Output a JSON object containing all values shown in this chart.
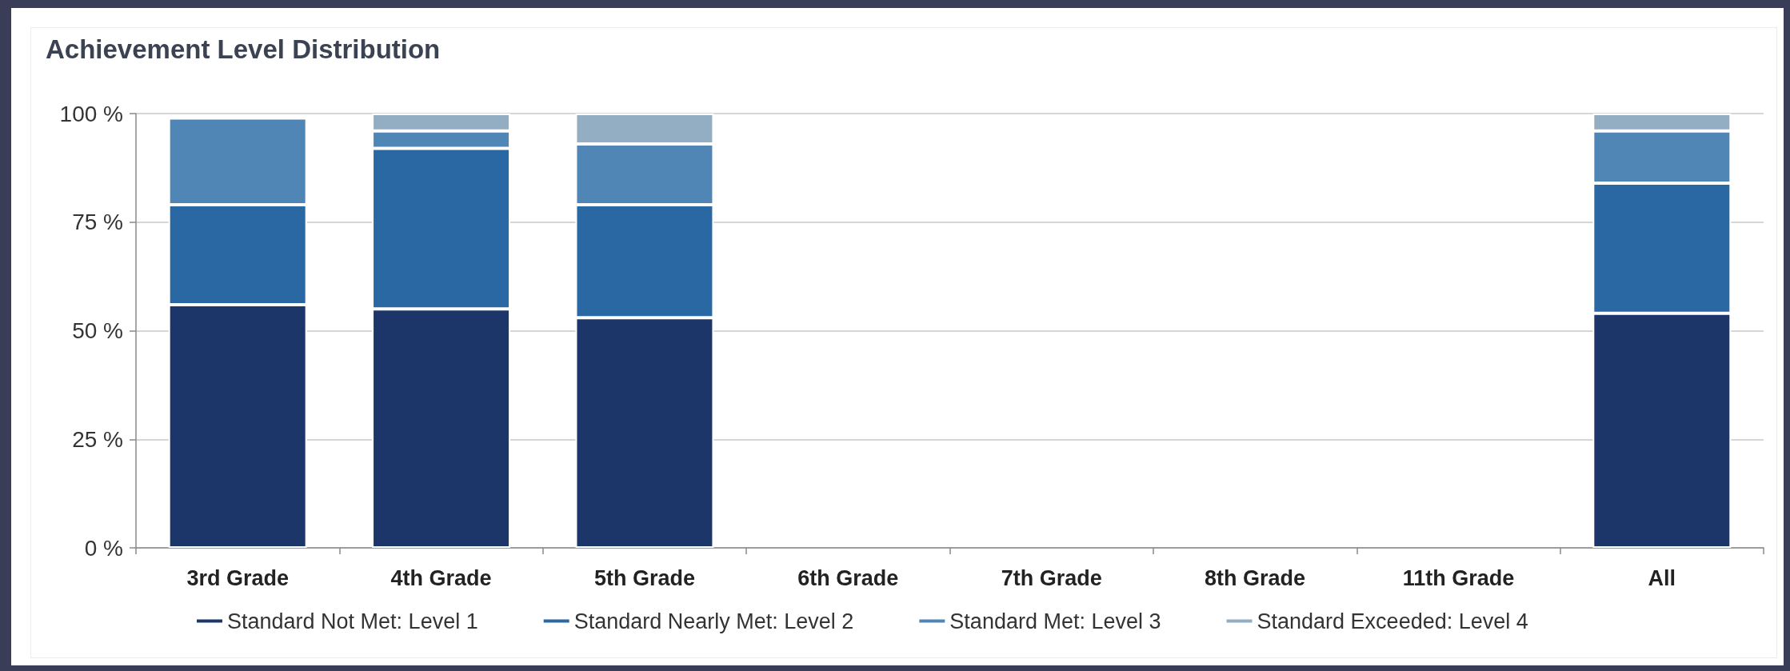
{
  "chart_data": {
    "type": "bar",
    "title": "Achievement Level Distribution",
    "categories": [
      "3rd Grade",
      "4th Grade",
      "5th Grade",
      "6th Grade",
      "7th Grade",
      "8th Grade",
      "11th Grade",
      "All"
    ],
    "stacked": true,
    "series": [
      {
        "name": "Standard Not Met: Level 1",
        "color": "#1c3669",
        "values": [
          56,
          55,
          53,
          null,
          null,
          null,
          null,
          54
        ]
      },
      {
        "name": "Standard Nearly Met: Level 2",
        "color": "#2a68a4",
        "values": [
          23,
          37,
          26,
          null,
          null,
          null,
          null,
          30
        ]
      },
      {
        "name": "Standard Met: Level 3",
        "color": "#4f86b6",
        "values": [
          20,
          4,
          14,
          null,
          null,
          null,
          null,
          12
        ]
      },
      {
        "name": "Standard Exceeded: Level 4",
        "color": "#93adc2",
        "values": [
          null,
          4,
          7,
          null,
          null,
          null,
          null,
          4
        ]
      }
    ],
    "ylim": [
      0,
      100
    ],
    "yticks": [
      {
        "value": 0,
        "label": "0 %"
      },
      {
        "value": 25,
        "label": "25 %"
      },
      {
        "value": 50,
        "label": "50 %"
      },
      {
        "value": 75,
        "label": "75 %"
      },
      {
        "value": 100,
        "label": "100 %"
      }
    ],
    "grid": "y",
    "legend": "bottom"
  }
}
